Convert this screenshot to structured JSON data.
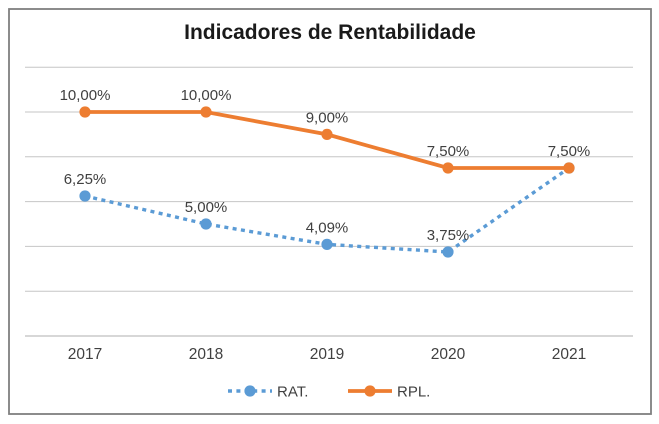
{
  "title": "Indicadores de Rentabilidade",
  "colors": {
    "rat_blue": "#5B9BD5",
    "rpl_orange": "#ED7D31",
    "gridline": "#C6C6C6",
    "axis_line": "#BFBFBF",
    "label_text": "#404040",
    "title_text": "#1A1A1A",
    "border": "#808080",
    "background": "#FFFFFF"
  },
  "chart_data": {
    "type": "line",
    "title": "Indicadores de Rentabilidade",
    "categories": [
      "2017",
      "2018",
      "2019",
      "2020",
      "2021"
    ],
    "series": [
      {
        "name": "RAT.",
        "values": [
          6.25,
          5.0,
          4.09,
          3.75,
          7.5
        ],
        "display_labels": [
          "6,25%",
          "5,00%",
          "4,09%",
          "3,75%",
          null
        ],
        "line_style": "dotted",
        "marker": "circle",
        "color": "#5B9BD5"
      },
      {
        "name": "RPL.",
        "values": [
          10.0,
          10.0,
          9.0,
          7.5,
          7.5
        ],
        "display_labels": [
          "10,00%",
          "10,00%",
          "9,00%",
          "7,50%",
          "7,50%"
        ],
        "line_style": "solid",
        "marker": "circle",
        "color": "#ED7D31"
      }
    ],
    "xlabel": "",
    "ylabel": "",
    "ylim": [
      0,
      12
    ],
    "grid_step": 2,
    "grid": true,
    "y_axis_labels_visible": false,
    "legend_position": "bottom"
  }
}
